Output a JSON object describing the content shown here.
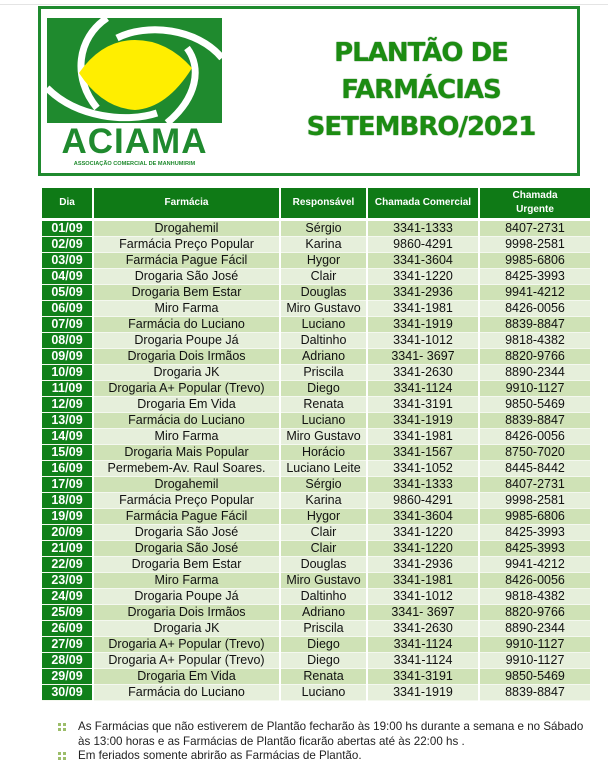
{
  "header": {
    "logo_text": "ACIAMA",
    "logo_subtitle": "ASSOCIAÇÃO COMERCIAL DE MANHUMIRIM",
    "title_lines": [
      "PLANTÃO DE",
      "FARMÁCIAS",
      "SETEMBRO/2021"
    ]
  },
  "colors": {
    "brand_green": "#1f8a2e",
    "logo_yellow": "#ffee00",
    "row_light": "#e6efdb",
    "row_dark": "#cfe2b6"
  },
  "table": {
    "columns": [
      "Dia",
      "Farmácia",
      "Responsável",
      "Chamada Comercial",
      "Chamada Urgente"
    ],
    "rows": [
      [
        "01/09",
        "Drogahemil",
        "Sérgio",
        "3341-1333",
        "8407-2731"
      ],
      [
        "02/09",
        "Farmácia Preço Popular",
        "Karina",
        "9860-4291",
        "9998-2581"
      ],
      [
        "03/09",
        "Farmácia Pague Fácil",
        "Hygor",
        "3341-3604",
        "9985-6806"
      ],
      [
        "04/09",
        "Drogaria São José",
        "Clair",
        "3341-1220",
        "8425-3993"
      ],
      [
        "05/09",
        "Drogaria Bem Estar",
        "Douglas",
        "3341-2936",
        "9941-4212"
      ],
      [
        "06/09",
        "Miro Farma",
        "Miro Gustavo",
        "3341-1981",
        "8426-0056"
      ],
      [
        "07/09",
        "Farmácia do Luciano",
        "Luciano",
        "3341-1919",
        "8839-8847"
      ],
      [
        "08/09",
        "Drogaria Poupe Já",
        "Daltinho",
        "3341-1012",
        "9818-4382"
      ],
      [
        "09/09",
        "Drogaria Dois Irmãos",
        "Adriano",
        "3341- 3697",
        "8820-9766"
      ],
      [
        "10/09",
        "Drogaria JK",
        "Priscila",
        "3341-2630",
        "8890-2344"
      ],
      [
        "11/09",
        "Drogaria A+ Popular (Trevo)",
        "Diego",
        "3341-1124",
        "9910-1127"
      ],
      [
        "12/09",
        "Drogaria Em Vida",
        "Renata",
        "3341-3191",
        "9850-5469"
      ],
      [
        "13/09",
        "Farmácia do Luciano",
        "Luciano",
        "3341-1919",
        "8839-8847"
      ],
      [
        "14/09",
        "Miro Farma",
        "Miro Gustavo",
        "3341-1981",
        "8426-0056"
      ],
      [
        "15/09",
        "Drogaria Mais Popular",
        "Horácio",
        "3341-1567",
        "8750-7020"
      ],
      [
        "16/09",
        "Permebem-Av. Raul Soares.",
        "Luciano Leite",
        "3341-1052",
        "8445-8442"
      ],
      [
        "17/09",
        "Drogahemil",
        "Sérgio",
        "3341-1333",
        "8407-2731"
      ],
      [
        "18/09",
        "Farmácia Preço Popular",
        "Karina",
        "9860-4291",
        "9998-2581"
      ],
      [
        "19/09",
        "Farmácia Pague Fácil",
        "Hygor",
        "3341-3604",
        "9985-6806"
      ],
      [
        "20/09",
        "Drogaria São José",
        "Clair",
        "3341-1220",
        "8425-3993"
      ],
      [
        "21/09",
        "Drogaria São José",
        "Clair",
        "3341-1220",
        "8425-3993"
      ],
      [
        "22/09",
        "Drogaria Bem Estar",
        "Douglas",
        "3341-2936",
        "9941-4212"
      ],
      [
        "23/09",
        "Miro Farma",
        "Miro Gustavo",
        "3341-1981",
        "8426-0056"
      ],
      [
        "24/09",
        "Drogaria Poupe Já",
        "Daltinho",
        "3341-1012",
        "9818-4382"
      ],
      [
        "25/09",
        "Drogaria Dois Irmãos",
        "Adriano",
        "3341- 3697",
        "8820-9766"
      ],
      [
        "26/09",
        "Drogaria JK",
        "Priscila",
        "3341-2630",
        "8890-2344"
      ],
      [
        "27/09",
        "Drogaria A+ Popular (Trevo)",
        "Diego",
        "3341-1124",
        "9910-1127"
      ],
      [
        "28/09",
        "Drogaria A+ Popular (Trevo)",
        "Diego",
        "3341-1124",
        "9910-1127"
      ],
      [
        "29/09",
        "Drogaria Em Vida",
        "Renata",
        "3341-3191",
        "9850-5469"
      ],
      [
        "30/09",
        "Farmácia do Luciano",
        "Luciano",
        "3341-1919",
        "8839-8847"
      ]
    ]
  },
  "notes": [
    "As Farmácias que não estiverem de Plantão fecharão às 19:00 hs durante a semana e no Sábado às 13:00 horas e as Farmácias de Plantão ficarão abertas até às 22:00 hs .",
    "Em feriados somente abrirão as Farmácias de Plantão."
  ]
}
